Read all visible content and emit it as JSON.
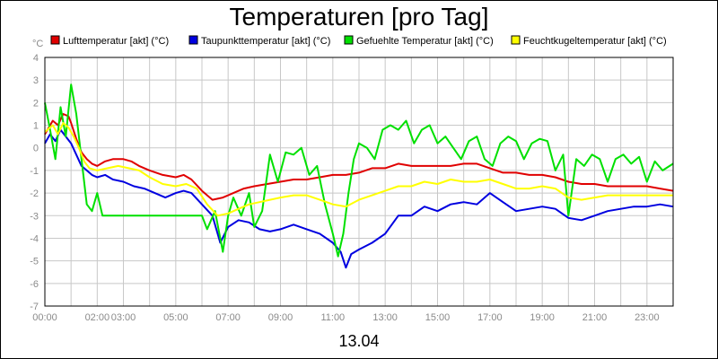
{
  "chart_data": {
    "type": "line",
    "title": "Temperaturen [pro Tag]",
    "date_label": "13.04",
    "y_unit": "°C",
    "ylim": [
      -7,
      4
    ],
    "y_ticks": [
      "4",
      "3",
      "2",
      "1",
      "0",
      "-1",
      "-2",
      "-3",
      "-4",
      "-5",
      "-6",
      "-7"
    ],
    "xlim": [
      0,
      24
    ],
    "x_ticks": [
      {
        "hour": 0,
        "label": "00:00"
      },
      {
        "hour": 2,
        "label": "02:00"
      },
      {
        "hour": 3,
        "label": "03:00"
      },
      {
        "hour": 5,
        "label": "05:00"
      },
      {
        "hour": 7,
        "label": "07:00"
      },
      {
        "hour": 9,
        "label": "09:00"
      },
      {
        "hour": 11,
        "label": "11:00"
      },
      {
        "hour": 13,
        "label": "13:00"
      },
      {
        "hour": 15,
        "label": "15:00"
      },
      {
        "hour": 17,
        "label": "17:00"
      },
      {
        "hour": 19,
        "label": "19:00"
      },
      {
        "hour": 21,
        "label": "21:00"
      },
      {
        "hour": 23,
        "label": "23:00"
      }
    ],
    "grid": true,
    "legend_position": "top",
    "series": [
      {
        "name": "Lufttemperatur [akt] (°C)",
        "color": "#e00000",
        "points": [
          [
            0,
            0.6
          ],
          [
            0.3,
            1.2
          ],
          [
            0.5,
            1.0
          ],
          [
            0.7,
            1.5
          ],
          [
            0.9,
            1.4
          ],
          [
            1.0,
            1.1
          ],
          [
            1.2,
            0.4
          ],
          [
            1.4,
            -0.2
          ],
          [
            1.6,
            -0.5
          ],
          [
            1.8,
            -0.7
          ],
          [
            2.0,
            -0.8
          ],
          [
            2.3,
            -0.6
          ],
          [
            2.6,
            -0.5
          ],
          [
            3.0,
            -0.5
          ],
          [
            3.3,
            -0.6
          ],
          [
            3.6,
            -0.8
          ],
          [
            4.0,
            -1.0
          ],
          [
            4.5,
            -1.2
          ],
          [
            5.0,
            -1.3
          ],
          [
            5.3,
            -1.2
          ],
          [
            5.6,
            -1.4
          ],
          [
            6.0,
            -1.9
          ],
          [
            6.4,
            -2.3
          ],
          [
            6.8,
            -2.2
          ],
          [
            7.2,
            -2.0
          ],
          [
            7.6,
            -1.8
          ],
          [
            8.0,
            -1.7
          ],
          [
            8.5,
            -1.6
          ],
          [
            9.0,
            -1.5
          ],
          [
            9.5,
            -1.4
          ],
          [
            10.0,
            -1.4
          ],
          [
            10.5,
            -1.3
          ],
          [
            11.0,
            -1.2
          ],
          [
            11.5,
            -1.2
          ],
          [
            12.0,
            -1.1
          ],
          [
            12.5,
            -0.9
          ],
          [
            13.0,
            -0.9
          ],
          [
            13.5,
            -0.7
          ],
          [
            14.0,
            -0.8
          ],
          [
            14.5,
            -0.8
          ],
          [
            15.0,
            -0.8
          ],
          [
            15.5,
            -0.8
          ],
          [
            16.0,
            -0.7
          ],
          [
            16.5,
            -0.7
          ],
          [
            17.0,
            -0.9
          ],
          [
            17.5,
            -1.1
          ],
          [
            18.0,
            -1.1
          ],
          [
            18.5,
            -1.2
          ],
          [
            19.0,
            -1.2
          ],
          [
            19.5,
            -1.3
          ],
          [
            20.0,
            -1.5
          ],
          [
            20.5,
            -1.6
          ],
          [
            21.0,
            -1.6
          ],
          [
            21.5,
            -1.7
          ],
          [
            22.0,
            -1.7
          ],
          [
            22.5,
            -1.7
          ],
          [
            23.0,
            -1.7
          ],
          [
            23.5,
            -1.8
          ],
          [
            24.0,
            -1.9
          ]
        ]
      },
      {
        "name": "Taupunkttemperatur [akt] (°C)",
        "color": "#0000e0",
        "points": [
          [
            0,
            0.2
          ],
          [
            0.2,
            0.6
          ],
          [
            0.4,
            0.3
          ],
          [
            0.6,
            0.8
          ],
          [
            0.8,
            0.5
          ],
          [
            1.0,
            0.2
          ],
          [
            1.2,
            -0.3
          ],
          [
            1.4,
            -0.8
          ],
          [
            1.6,
            -1.0
          ],
          [
            1.8,
            -1.2
          ],
          [
            2.0,
            -1.3
          ],
          [
            2.3,
            -1.2
          ],
          [
            2.6,
            -1.4
          ],
          [
            3.0,
            -1.5
          ],
          [
            3.4,
            -1.7
          ],
          [
            3.8,
            -1.8
          ],
          [
            4.2,
            -2.0
          ],
          [
            4.6,
            -2.2
          ],
          [
            5.0,
            -2.0
          ],
          [
            5.3,
            -1.9
          ],
          [
            5.6,
            -2.0
          ],
          [
            6.0,
            -2.5
          ],
          [
            6.4,
            -3.0
          ],
          [
            6.7,
            -4.2
          ],
          [
            7.0,
            -3.5
          ],
          [
            7.4,
            -3.2
          ],
          [
            7.8,
            -3.3
          ],
          [
            8.2,
            -3.6
          ],
          [
            8.6,
            -3.7
          ],
          [
            9.0,
            -3.6
          ],
          [
            9.5,
            -3.4
          ],
          [
            10.0,
            -3.6
          ],
          [
            10.5,
            -3.8
          ],
          [
            11.0,
            -4.2
          ],
          [
            11.3,
            -4.6
          ],
          [
            11.5,
            -5.3
          ],
          [
            11.7,
            -4.7
          ],
          [
            12.0,
            -4.5
          ],
          [
            12.5,
            -4.2
          ],
          [
            13.0,
            -3.8
          ],
          [
            13.5,
            -3.0
          ],
          [
            14.0,
            -3.0
          ],
          [
            14.5,
            -2.6
          ],
          [
            15.0,
            -2.8
          ],
          [
            15.5,
            -2.5
          ],
          [
            16.0,
            -2.4
          ],
          [
            16.5,
            -2.5
          ],
          [
            17.0,
            -2.0
          ],
          [
            17.5,
            -2.4
          ],
          [
            18.0,
            -2.8
          ],
          [
            18.5,
            -2.7
          ],
          [
            19.0,
            -2.6
          ],
          [
            19.5,
            -2.7
          ],
          [
            20.0,
            -3.1
          ],
          [
            20.5,
            -3.2
          ],
          [
            21.0,
            -3.0
          ],
          [
            21.5,
            -2.8
          ],
          [
            22.0,
            -2.7
          ],
          [
            22.5,
            -2.6
          ],
          [
            23.0,
            -2.6
          ],
          [
            23.5,
            -2.5
          ],
          [
            24.0,
            -2.6
          ]
        ]
      },
      {
        "name": "Gefuehlte Temperatur [akt] (°C)",
        "color": "#00e000",
        "points": [
          [
            0,
            2.0
          ],
          [
            0.2,
            0.8
          ],
          [
            0.4,
            -0.5
          ],
          [
            0.6,
            1.8
          ],
          [
            0.8,
            0.5
          ],
          [
            1.0,
            2.8
          ],
          [
            1.2,
            1.5
          ],
          [
            1.4,
            -0.5
          ],
          [
            1.6,
            -2.5
          ],
          [
            1.8,
            -2.8
          ],
          [
            2.0,
            -2.0
          ],
          [
            2.2,
            -3.0
          ],
          [
            6.0,
            -3.0
          ],
          [
            6.2,
            -3.6
          ],
          [
            6.5,
            -2.8
          ],
          [
            6.8,
            -4.6
          ],
          [
            7.0,
            -3.0
          ],
          [
            7.2,
            -2.2
          ],
          [
            7.5,
            -3.0
          ],
          [
            7.8,
            -2.0
          ],
          [
            8.0,
            -3.5
          ],
          [
            8.3,
            -2.8
          ],
          [
            8.6,
            -0.3
          ],
          [
            8.9,
            -1.5
          ],
          [
            9.2,
            -0.2
          ],
          [
            9.5,
            -0.3
          ],
          [
            9.8,
            0.0
          ],
          [
            10.1,
            -1.2
          ],
          [
            10.4,
            -0.8
          ],
          [
            10.7,
            -2.5
          ],
          [
            11.0,
            -3.8
          ],
          [
            11.2,
            -4.8
          ],
          [
            11.4,
            -3.8
          ],
          [
            11.6,
            -2.0
          ],
          [
            11.8,
            -0.5
          ],
          [
            12.0,
            0.2
          ],
          [
            12.3,
            0.0
          ],
          [
            12.6,
            -0.5
          ],
          [
            12.9,
            0.8
          ],
          [
            13.2,
            1.0
          ],
          [
            13.5,
            0.8
          ],
          [
            13.8,
            1.2
          ],
          [
            14.1,
            0.2
          ],
          [
            14.4,
            0.8
          ],
          [
            14.7,
            1.0
          ],
          [
            15.0,
            0.2
          ],
          [
            15.3,
            0.5
          ],
          [
            15.6,
            0.0
          ],
          [
            15.9,
            -0.5
          ],
          [
            16.2,
            0.3
          ],
          [
            16.5,
            0.5
          ],
          [
            16.8,
            -0.5
          ],
          [
            17.1,
            -0.8
          ],
          [
            17.4,
            0.2
          ],
          [
            17.7,
            0.5
          ],
          [
            18.0,
            0.3
          ],
          [
            18.3,
            -0.5
          ],
          [
            18.6,
            0.2
          ],
          [
            18.9,
            0.4
          ],
          [
            19.2,
            0.3
          ],
          [
            19.5,
            -1.0
          ],
          [
            19.8,
            -0.3
          ],
          [
            20.0,
            -3.0
          ],
          [
            20.3,
            -0.5
          ],
          [
            20.6,
            -0.8
          ],
          [
            20.9,
            -0.3
          ],
          [
            21.2,
            -0.5
          ],
          [
            21.5,
            -1.5
          ],
          [
            21.8,
            -0.5
          ],
          [
            22.1,
            -0.3
          ],
          [
            22.4,
            -0.7
          ],
          [
            22.7,
            -0.4
          ],
          [
            23.0,
            -1.5
          ],
          [
            23.3,
            -0.6
          ],
          [
            23.6,
            -1.0
          ],
          [
            24.0,
            -0.7
          ]
        ]
      },
      {
        "name": "Feuchtkugeltemperatur [akt] (°C)",
        "color": "#ffff00",
        "points": [
          [
            0,
            0.7
          ],
          [
            0.3,
            1.0
          ],
          [
            0.5,
            0.6
          ],
          [
            0.7,
            1.1
          ],
          [
            0.9,
            0.9
          ],
          [
            1.1,
            0.5
          ],
          [
            1.3,
            0.0
          ],
          [
            1.5,
            -0.6
          ],
          [
            1.7,
            -0.9
          ],
          [
            2.0,
            -1.0
          ],
          [
            2.4,
            -0.9
          ],
          [
            2.8,
            -0.8
          ],
          [
            3.2,
            -0.9
          ],
          [
            3.6,
            -1.0
          ],
          [
            4.0,
            -1.3
          ],
          [
            4.5,
            -1.6
          ],
          [
            5.0,
            -1.7
          ],
          [
            5.4,
            -1.6
          ],
          [
            5.8,
            -1.8
          ],
          [
            6.2,
            -2.5
          ],
          [
            6.6,
            -3.0
          ],
          [
            7.0,
            -2.9
          ],
          [
            7.4,
            -2.7
          ],
          [
            7.8,
            -2.5
          ],
          [
            8.2,
            -2.4
          ],
          [
            8.6,
            -2.3
          ],
          [
            9.0,
            -2.2
          ],
          [
            9.5,
            -2.1
          ],
          [
            10.0,
            -2.1
          ],
          [
            10.5,
            -2.3
          ],
          [
            11.0,
            -2.5
          ],
          [
            11.5,
            -2.6
          ],
          [
            12.0,
            -2.3
          ],
          [
            12.5,
            -2.1
          ],
          [
            13.0,
            -1.9
          ],
          [
            13.5,
            -1.7
          ],
          [
            14.0,
            -1.7
          ],
          [
            14.5,
            -1.5
          ],
          [
            15.0,
            -1.6
          ],
          [
            15.5,
            -1.4
          ],
          [
            16.0,
            -1.5
          ],
          [
            16.5,
            -1.5
          ],
          [
            17.0,
            -1.4
          ],
          [
            17.5,
            -1.6
          ],
          [
            18.0,
            -1.8
          ],
          [
            18.5,
            -1.8
          ],
          [
            19.0,
            -1.7
          ],
          [
            19.5,
            -1.8
          ],
          [
            20.0,
            -2.2
          ],
          [
            20.5,
            -2.3
          ],
          [
            21.0,
            -2.2
          ],
          [
            21.5,
            -2.1
          ],
          [
            22.0,
            -2.1
          ],
          [
            22.5,
            -2.1
          ],
          [
            23.0,
            -2.1
          ],
          [
            23.5,
            -2.1
          ],
          [
            24.0,
            -2.1
          ]
        ]
      }
    ]
  }
}
